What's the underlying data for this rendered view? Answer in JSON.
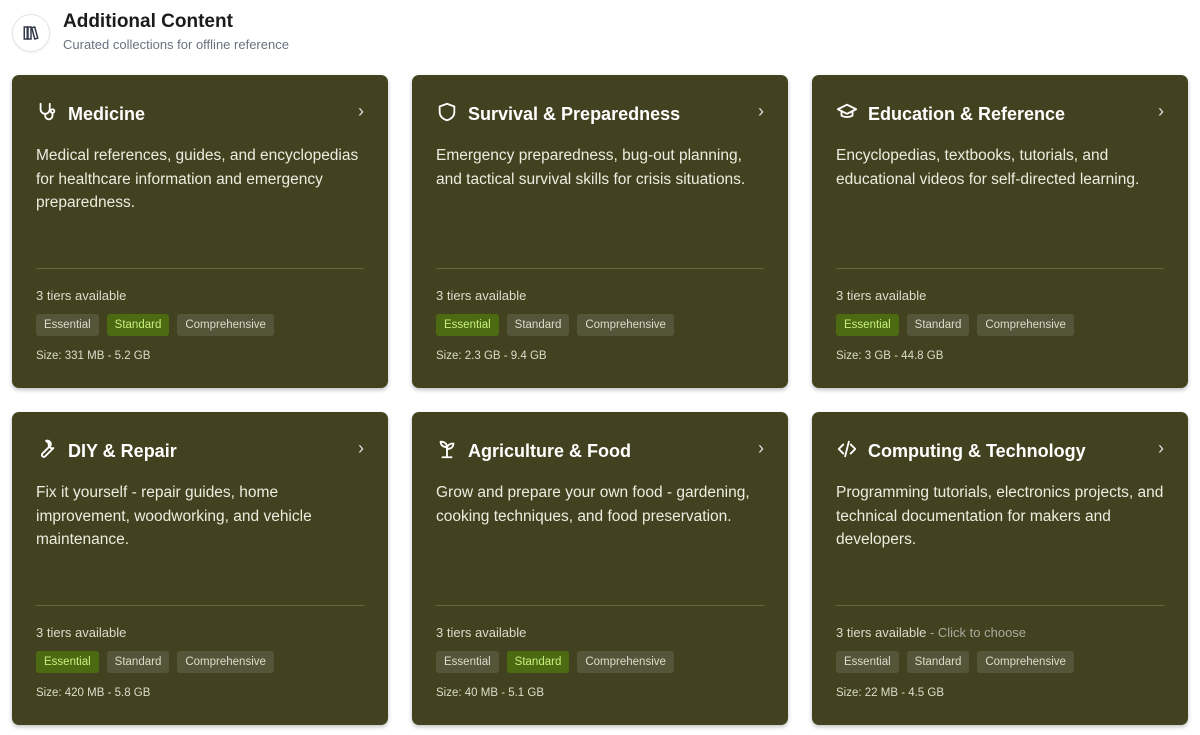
{
  "header": {
    "title": "Additional Content",
    "subtitle": "Curated collections for offline reference",
    "icon": "books-icon"
  },
  "colors": {
    "card_bg": "#424220",
    "selected_pill": "#4b6a12"
  },
  "cards": [
    {
      "icon": "stethoscope-icon",
      "name": "Medicine",
      "description": "Medical references, guides, and encyclopedias for healthcare information and emergency preparedness.",
      "tiers": "3 tiers available",
      "hint": "",
      "pills": [
        "Essential",
        "Standard",
        "Comprehensive"
      ],
      "selected": 1,
      "size": "Size: 331 MB - 5.2 GB"
    },
    {
      "icon": "shield-icon",
      "name": "Survival & Preparedness",
      "description": "Emergency preparedness, bug-out planning, and tactical survival skills for crisis situations.",
      "tiers": "3 tiers available",
      "hint": "",
      "pills": [
        "Essential",
        "Standard",
        "Comprehensive"
      ],
      "selected": 0,
      "size": "Size: 2.3 GB - 9.4 GB"
    },
    {
      "icon": "graduation-cap-icon",
      "name": "Education & Reference",
      "description": "Encyclopedias, textbooks, tutorials, and educational videos for self-directed learning.",
      "tiers": "3 tiers available",
      "hint": "",
      "pills": [
        "Essential",
        "Standard",
        "Comprehensive"
      ],
      "selected": 0,
      "size": "Size: 3 GB - 44.8 GB"
    },
    {
      "icon": "wrench-icon",
      "name": "DIY & Repair",
      "description": "Fix it yourself - repair guides, home improvement, woodworking, and vehicle maintenance.",
      "tiers": "3 tiers available",
      "hint": "",
      "pills": [
        "Essential",
        "Standard",
        "Comprehensive"
      ],
      "selected": 0,
      "size": "Size: 420 MB - 5.8 GB"
    },
    {
      "icon": "sprout-icon",
      "name": "Agriculture & Food",
      "description": "Grow and prepare your own food - gardening, cooking techniques, and food preservation.",
      "tiers": "3 tiers available",
      "hint": "",
      "pills": [
        "Essential",
        "Standard",
        "Comprehensive"
      ],
      "selected": 1,
      "size": "Size: 40 MB - 5.1 GB"
    },
    {
      "icon": "code-icon",
      "name": "Computing & Technology",
      "description": "Programming tutorials, electronics projects, and technical documentation for makers and developers.",
      "tiers": "3 tiers available",
      "hint": " - Click to choose",
      "pills": [
        "Essential",
        "Standard",
        "Comprehensive"
      ],
      "selected": -1,
      "size": "Size: 22 MB - 4.5 GB"
    }
  ]
}
